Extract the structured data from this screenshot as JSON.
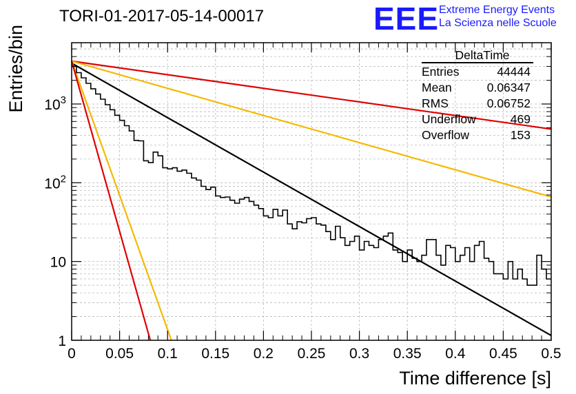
{
  "title": "TORI-01-2017-05-14-00017",
  "logo": {
    "mark": "EEE",
    "line1": "Extreme Energy Events",
    "line2": "La Scienza nelle Scuole",
    "color": "#1a1aff"
  },
  "stats": {
    "title": "DeltaTime",
    "rows": [
      {
        "label": "Entries",
        "value": "44444"
      },
      {
        "label": "Mean",
        "value": "0.06347"
      },
      {
        "label": "RMS",
        "value": "0.06752"
      },
      {
        "label": "Underflow",
        "value": "469"
      },
      {
        "label": "Overflow",
        "value": "153"
      }
    ]
  },
  "chart_data": {
    "type": "line",
    "title": "TORI-01-2017-05-14-00017",
    "xlabel": "Time difference [s]",
    "ylabel": "Entries/bin",
    "xlim": [
      0,
      0.5
    ],
    "ylim": [
      1,
      6000
    ],
    "yscale": "log",
    "grid": true,
    "x_ticks": [
      "0",
      "0.05",
      "0.1",
      "0.15",
      "0.2",
      "0.25",
      "0.3",
      "0.35",
      "0.4",
      "0.45",
      "0.5"
    ],
    "y_ticks": [
      {
        "value": 1,
        "label": "1"
      },
      {
        "value": 10,
        "label": "10"
      },
      {
        "value": 100,
        "label": "10^2"
      },
      {
        "value": 1000,
        "label": "10^3"
      }
    ],
    "histogram": {
      "name": "DeltaTime",
      "color": "#000000",
      "bin_width": 0.005,
      "x_start": 0,
      "values": [
        3000,
        2500,
        2150,
        1830,
        1560,
        1340,
        1150,
        980,
        845,
        720,
        620,
        530,
        455,
        345,
        340,
        190,
        180,
        245,
        220,
        155,
        150,
        155,
        140,
        145,
        132,
        115,
        108,
        90,
        82,
        88,
        68,
        65,
        66,
        60,
        55,
        62,
        65,
        58,
        52,
        47,
        38,
        36,
        46,
        38,
        45,
        30,
        26,
        32,
        31,
        35,
        36,
        30,
        29,
        24,
        19,
        28,
        20,
        16,
        18,
        21,
        14,
        18,
        16,
        15,
        19,
        21,
        23,
        14,
        13,
        10,
        14,
        11,
        10,
        12,
        19,
        19,
        12,
        9,
        16,
        15,
        10,
        12,
        15,
        10,
        16,
        18,
        11,
        10,
        7,
        7,
        6,
        10,
        6,
        8,
        6,
        5,
        5,
        12,
        8,
        6
      ]
    },
    "fits": [
      {
        "color": "#e00000",
        "x": [
          0,
          0.5
        ],
        "y": [
          3500,
          480
        ]
      },
      {
        "color": "#f5b800",
        "x": [
          0,
          0.5
        ],
        "y": [
          3500,
          66
        ]
      },
      {
        "color": "#000000",
        "x": [
          0,
          0.5
        ],
        "y": [
          3300,
          1.15
        ]
      },
      {
        "color": "#f5b800",
        "x": [
          0,
          0.104
        ],
        "y": [
          3500,
          1
        ]
      },
      {
        "color": "#e00000",
        "x": [
          0,
          0.082
        ],
        "y": [
          3500,
          1
        ]
      }
    ]
  }
}
